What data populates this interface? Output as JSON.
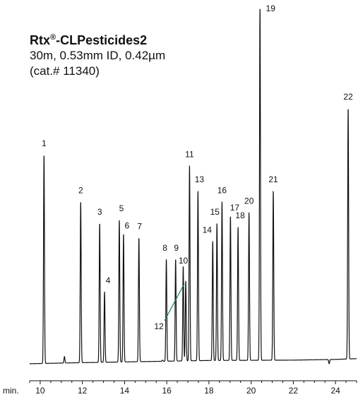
{
  "chart_data": {
    "type": "line",
    "title": {
      "brand": "Rtx",
      "mark": "®",
      "name": "-CLPesticides2",
      "line2": "30m, 0.53mm ID, 0.42µm",
      "line3": "(cat.# 11340)"
    },
    "xlabel": "min.",
    "xlim": [
      9.5,
      25.0
    ],
    "x_ticks": [
      10,
      12,
      14,
      16,
      18,
      20,
      22,
      24
    ],
    "ylabel": "",
    "ylim": [
      0,
      100
    ],
    "baseline_points": [
      [
        9.5,
        1.0
      ],
      [
        12.0,
        1.3
      ],
      [
        15.0,
        1.6
      ],
      [
        18.0,
        1.9
      ],
      [
        22.0,
        2.0
      ],
      [
        24.0,
        2.2
      ],
      [
        25.0,
        2.4
      ]
    ],
    "peaks": [
      {
        "label": "1",
        "rt": 10.18,
        "height": 59
      },
      {
        "label": "2",
        "rt": 11.92,
        "height": 46
      },
      {
        "label": "3",
        "rt": 12.82,
        "height": 40
      },
      {
        "label": "4",
        "rt": 13.05,
        "height": 21
      },
      {
        "label": "5",
        "rt": 13.75,
        "height": 41
      },
      {
        "label": "6",
        "rt": 13.95,
        "height": 37
      },
      {
        "label": "7",
        "rt": 14.68,
        "height": 36
      },
      {
        "label": "8",
        "rt": 15.98,
        "height": 30
      },
      {
        "label": "9",
        "rt": 16.42,
        "height": 30
      },
      {
        "label": "10",
        "rt": 16.78,
        "height": 28
      },
      {
        "label": "11",
        "rt": 17.08,
        "height": 56
      },
      {
        "label": "12",
        "rt": 16.9,
        "height": 24
      },
      {
        "label": "13",
        "rt": 17.48,
        "height": 49
      },
      {
        "label": "14",
        "rt": 18.18,
        "height": 35
      },
      {
        "label": "15",
        "rt": 18.38,
        "height": 40
      },
      {
        "label": "16",
        "rt": 18.62,
        "height": 46
      },
      {
        "label": "17",
        "rt": 19.02,
        "height": 42
      },
      {
        "label": "18",
        "rt": 19.38,
        "height": 39
      },
      {
        "label": "20",
        "rt": 19.9,
        "height": 43
      },
      {
        "label": "19",
        "rt": 20.42,
        "height": 100
      },
      {
        "label": "21",
        "rt": 21.05,
        "height": 49
      },
      {
        "label": "22",
        "rt": 24.6,
        "height": 72
      }
    ],
    "minor_peaks": [
      {
        "rt": 11.15,
        "height": 3
      },
      {
        "rt": 15.8,
        "height": 2
      },
      {
        "rt": 20.9,
        "height": 2
      },
      {
        "rt": 23.7,
        "height": 1
      }
    ]
  }
}
